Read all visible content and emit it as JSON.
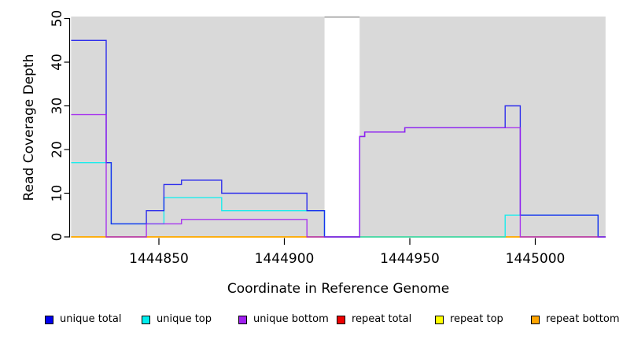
{
  "chart_data": {
    "type": "line",
    "style": "step",
    "title": "",
    "xlabel": "Coordinate in Reference Genome",
    "ylabel": "Read Coverage Depth",
    "xlim": [
      1444815,
      1445028
    ],
    "ylim": [
      0,
      50
    ],
    "x_tick_values": [
      1444850,
      1444900,
      1444950,
      1445000
    ],
    "x_tick_labels": [
      "1444850",
      "1444900",
      "1444950",
      "1445000"
    ],
    "y_tick_values": [
      0,
      10,
      20,
      30,
      40,
      50
    ],
    "y_tick_labels": [
      "0",
      "10",
      "20",
      "30",
      "40",
      "50"
    ],
    "grid": false,
    "legend_position": "bottom",
    "plot_background_color": "#d9d9d9",
    "background_regions": [
      {
        "start": 1444815,
        "end": 1444916
      },
      {
        "start": 1444930,
        "end": 1445028
      }
    ],
    "gap_region": {
      "start": 1444916,
      "end": 1444930,
      "top_line_color": "#a0a0a0"
    },
    "series": [
      {
        "name": "repeat total",
        "color": "#EE0000",
        "steps": [
          [
            1444815,
            0
          ]
        ]
      },
      {
        "name": "repeat top",
        "color": "#FFFF00",
        "steps": [
          [
            1444815,
            0
          ]
        ]
      },
      {
        "name": "repeat bottom",
        "color": "#FFA500",
        "steps": [
          [
            1444815,
            0
          ]
        ]
      },
      {
        "name": "unique top",
        "color": "#00EEEE",
        "steps": [
          [
            1444815,
            17
          ],
          [
            1444831,
            3
          ],
          [
            1444852,
            9
          ],
          [
            1444875,
            6
          ],
          [
            1444916,
            0
          ],
          [
            1444988,
            5
          ],
          [
            1445025,
            0
          ]
        ]
      },
      {
        "name": "unique total",
        "color": "#1717EE",
        "steps": [
          [
            1444815,
            45
          ],
          [
            1444829,
            17
          ],
          [
            1444831,
            3
          ],
          [
            1444845,
            6
          ],
          [
            1444852,
            12
          ],
          [
            1444859,
            13
          ],
          [
            1444875,
            10
          ],
          [
            1444909,
            6
          ],
          [
            1444916,
            0
          ],
          [
            1444930,
            23
          ],
          [
            1444932,
            24
          ],
          [
            1444948,
            25
          ],
          [
            1444988,
            30
          ],
          [
            1444994,
            5
          ],
          [
            1445025,
            0
          ]
        ]
      },
      {
        "name": "unique bottom",
        "color": "#A020F0",
        "steps": [
          [
            1444815,
            28
          ],
          [
            1444829,
            0
          ],
          [
            1444845,
            3
          ],
          [
            1444859,
            4
          ],
          [
            1444909,
            0
          ],
          [
            1444930,
            23
          ],
          [
            1444932,
            24
          ],
          [
            1444948,
            25
          ],
          [
            1444994,
            0
          ]
        ]
      }
    ]
  },
  "legend": {
    "items": [
      {
        "label": "unique total",
        "color": "#0000EE"
      },
      {
        "label": "unique top",
        "color": "#00EEEE"
      },
      {
        "label": "unique bottom",
        "color": "#A020F0"
      },
      {
        "label": "repeat total",
        "color": "#EE0000"
      },
      {
        "label": "repeat top",
        "color": "#FFFF00"
      },
      {
        "label": "repeat bottom",
        "color": "#FFA500"
      }
    ]
  }
}
